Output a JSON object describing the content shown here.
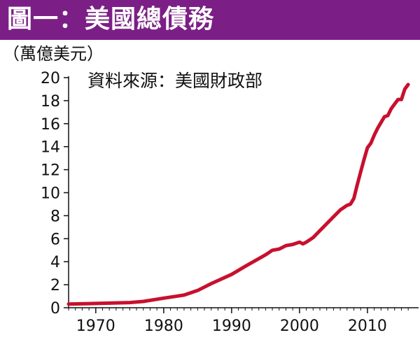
{
  "header": {
    "title": "圖一：美國總債務"
  },
  "chart_data": {
    "type": "line",
    "title": "圖一：美國總債務",
    "ylabel": "（萬億美元）",
    "source": "資料來源：美國財政部",
    "xlim": [
      1966,
      2016.5
    ],
    "ylim": [
      0,
      20
    ],
    "x_ticks": [
      "1970",
      "1980",
      "1990",
      "2000",
      "2010"
    ],
    "y_ticks": [
      "0",
      "2",
      "4",
      "6",
      "8",
      "10",
      "12",
      "14",
      "16",
      "18",
      "20"
    ],
    "grid": false,
    "series": [
      {
        "color": "#c8102e",
        "points": [
          [
            1966,
            0.32
          ],
          [
            1970,
            0.37
          ],
          [
            1975,
            0.45
          ],
          [
            1977,
            0.55
          ],
          [
            1980,
            0.83
          ],
          [
            1983,
            1.1
          ],
          [
            1985,
            1.5
          ],
          [
            1987,
            2.1
          ],
          [
            1990,
            2.9
          ],
          [
            1992,
            3.6
          ],
          [
            1995,
            4.6
          ],
          [
            1996,
            5.0
          ],
          [
            1997,
            5.1
          ],
          [
            1998,
            5.4
          ],
          [
            1999,
            5.5
          ],
          [
            1999.5,
            5.6
          ],
          [
            2000,
            5.7
          ],
          [
            2000.5,
            5.55
          ],
          [
            2001,
            5.7
          ],
          [
            2002,
            6.1
          ],
          [
            2003,
            6.7
          ],
          [
            2004,
            7.3
          ],
          [
            2005,
            7.9
          ],
          [
            2006,
            8.5
          ],
          [
            2007,
            8.9
          ],
          [
            2007.5,
            9.0
          ],
          [
            2008,
            9.5
          ],
          [
            2008.5,
            10.7
          ],
          [
            2009,
            11.8
          ],
          [
            2009.5,
            12.9
          ],
          [
            2010,
            13.9
          ],
          [
            2010.5,
            14.3
          ],
          [
            2011,
            15.0
          ],
          [
            2011.5,
            15.6
          ],
          [
            2012,
            16.1
          ],
          [
            2012.5,
            16.6
          ],
          [
            2013,
            16.7
          ],
          [
            2013.5,
            17.3
          ],
          [
            2014,
            17.7
          ],
          [
            2014.5,
            18.1
          ],
          [
            2015,
            18.1
          ],
          [
            2015.5,
            19.0
          ],
          [
            2016,
            19.4
          ]
        ]
      }
    ]
  }
}
